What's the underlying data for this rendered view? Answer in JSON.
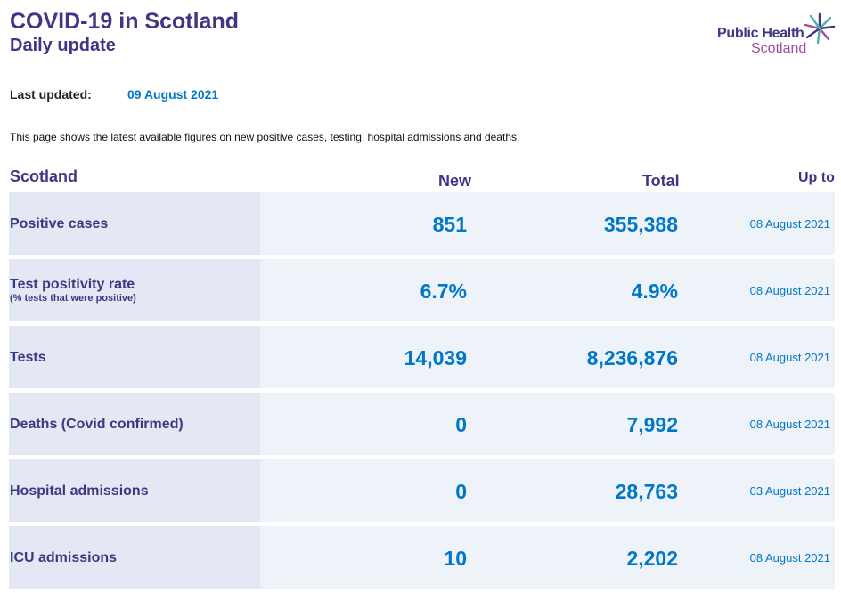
{
  "header": {
    "title": "COVID-19 in Scotland",
    "subtitle": "Daily update",
    "logo_line1": "Public Health",
    "logo_line2": "Scotland"
  },
  "updated": {
    "label": "Last updated:",
    "date": "09 August 2021"
  },
  "intro": "This page shows the latest available figures on new positive cases, testing, hospital admissions and deaths.",
  "table": {
    "region": "Scotland",
    "col_new": "New",
    "col_total": "Total",
    "col_upto": "Up to",
    "rows": [
      {
        "label": "Positive cases",
        "sublabel": "",
        "new": "851",
        "total": "355,388",
        "upto": "08 August 2021"
      },
      {
        "label": "Test positivity rate",
        "sublabel": "(% tests that were positive)",
        "new": "6.7%",
        "total": "4.9%",
        "upto": "08 August 2021"
      },
      {
        "label": "Tests",
        "sublabel": "",
        "new": "14,039",
        "total": "8,236,876",
        "upto": "08 August 2021"
      },
      {
        "label": "Deaths (Covid confirmed)",
        "sublabel": "",
        "new": "0",
        "total": "7,992",
        "upto": "08 August 2021"
      },
      {
        "label": "Hospital admissions",
        "sublabel": "",
        "new": "0",
        "total": "28,763",
        "upto": "03 August 2021"
      },
      {
        "label": "ICU admissions",
        "sublabel": "",
        "new": "10",
        "total": "2,202",
        "upto": "08 August 2021"
      }
    ]
  },
  "colors": {
    "brand_purple": "#3f3685",
    "accent_blue": "#0078c8",
    "logo_magenta": "#9b4e9e",
    "logo_teal": "#4fb0a5"
  }
}
